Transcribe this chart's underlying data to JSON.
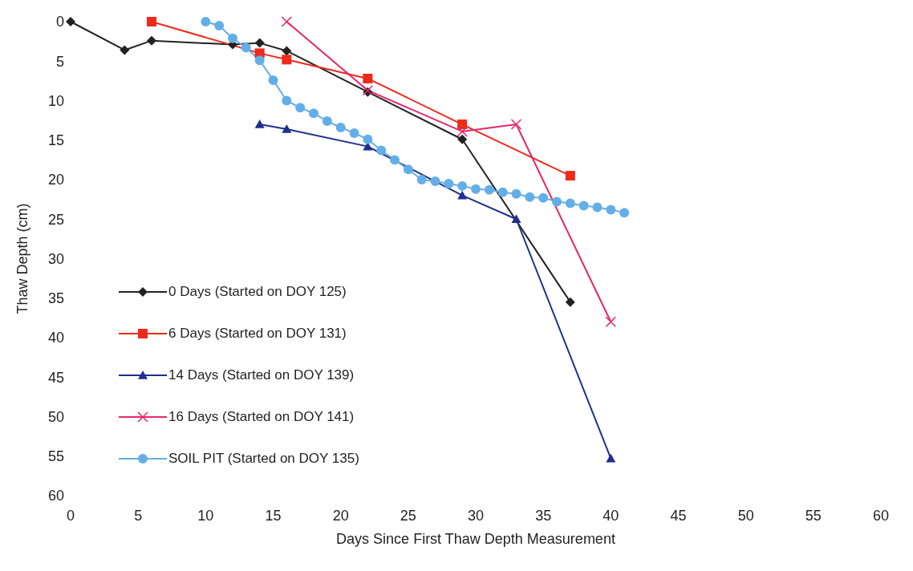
{
  "chart_data": {
    "type": "line",
    "xlabel": "Days Since First Thaw Depth Measurement",
    "ylabel": "Thaw Depth (cm)",
    "xlim": [
      0,
      60
    ],
    "xticks": [
      0,
      5,
      10,
      15,
      20,
      25,
      30,
      35,
      40,
      45,
      50,
      55,
      60
    ],
    "ylim": [
      60,
      0
    ],
    "yticks": [
      0,
      5,
      10,
      15,
      20,
      25,
      30,
      35,
      40,
      45,
      50,
      55,
      60
    ],
    "grid": false,
    "legend": "bottom left",
    "line_style": "solid",
    "series": [
      {
        "name": "0 Days (Started on DOY 125)",
        "color": "#222222",
        "marker": "diamond",
        "x": [
          0,
          4,
          6,
          12,
          14,
          16,
          22,
          29,
          37
        ],
        "values": [
          0,
          3.6,
          2.4,
          2.9,
          2.7,
          3.7,
          8.9,
          14.9,
          35.5
        ]
      },
      {
        "name": "6 Days (Started on DOY 131)",
        "color": "#ee2a1b",
        "marker": "square",
        "x": [
          6,
          14,
          16,
          22,
          29,
          37
        ],
        "values": [
          0,
          4,
          4.8,
          7.2,
          13,
          19.5
        ]
      },
      {
        "name": "14 Days (Started on DOY 139)",
        "color": "#1f2f8f",
        "marker": "triangle",
        "x": [
          14,
          16,
          22,
          29,
          33,
          40
        ],
        "values": [
          13,
          13.6,
          15.8,
          22,
          25,
          55.3
        ]
      },
      {
        "name": "16 Days (Started on DOY 141)",
        "color": "#e5266a",
        "marker": "cross",
        "x": [
          16,
          22,
          29,
          33,
          40
        ],
        "values": [
          0,
          8.7,
          13.9,
          13,
          38
        ]
      },
      {
        "name": "SOIL PIT (Started on DOY 135)",
        "color": "#64aee8",
        "marker": "circle",
        "x": [
          10,
          11,
          12,
          13,
          14,
          15,
          16,
          17,
          18,
          19,
          20,
          21,
          22,
          23,
          24,
          25,
          26,
          27,
          28,
          29,
          30,
          31,
          32,
          33,
          34,
          35,
          36,
          37,
          38,
          39,
          40,
          41
        ],
        "values": [
          0,
          0.5,
          2.1,
          3.3,
          4.9,
          7.4,
          10,
          10.9,
          11.6,
          12.6,
          13.4,
          14.1,
          14.9,
          16.3,
          17.5,
          18.7,
          20,
          20.2,
          20.5,
          20.8,
          21.2,
          21.3,
          21.6,
          21.8,
          22.2,
          22.3,
          22.8,
          23,
          23.3,
          23.5,
          23.8,
          24.2
        ]
      }
    ]
  }
}
